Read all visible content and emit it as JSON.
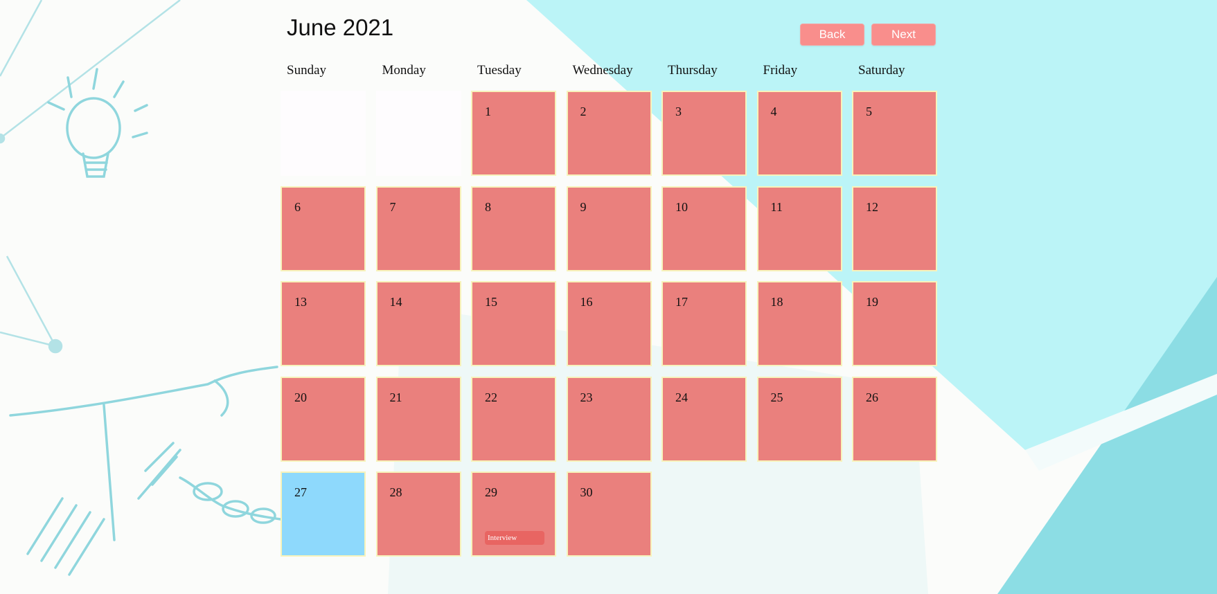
{
  "header": {
    "title": "June 2021",
    "back_label": "Back",
    "next_label": "Next"
  },
  "colors": {
    "day_cell": "#ea807d",
    "today_cell": "#8ed9fc",
    "button": "#f98e8c",
    "event_chip": "#e86562"
  },
  "weekdays": [
    "Sunday",
    "Monday",
    "Tuesday",
    "Wednesday",
    "Thursday",
    "Friday",
    "Saturday"
  ],
  "calendar": {
    "leading_blank_days": 2,
    "days_in_month": 30,
    "today": 27,
    "events": [
      {
        "day": 29,
        "label": "Interview"
      }
    ]
  }
}
